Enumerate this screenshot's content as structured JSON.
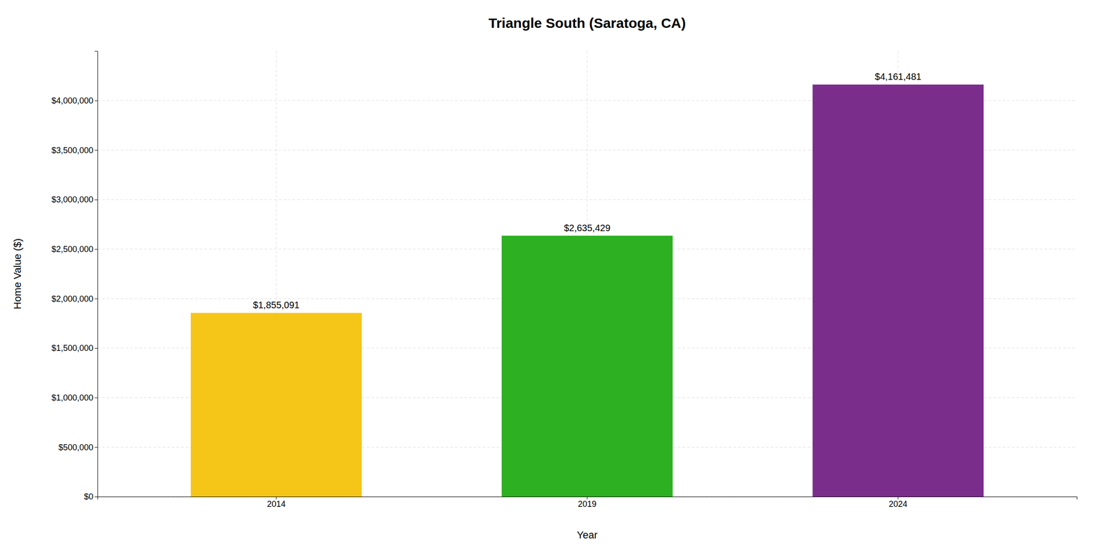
{
  "chart_data": {
    "type": "bar",
    "title": "Triangle South (Saratoga, CA)",
    "xlabel": "Year",
    "ylabel": "Home Value ($)",
    "categories": [
      "2014",
      "2019",
      "2024"
    ],
    "values": [
      1855091,
      2635429,
      4161481
    ],
    "value_labels": [
      "$1,855,091",
      "$2,635,429",
      "$4,161,481"
    ],
    "colors": [
      "#F5C518",
      "#2DB022",
      "#7B2D8B"
    ],
    "data_labels": true,
    "ylim": [
      0,
      4500000
    ],
    "yticks": [
      {
        "value": 0,
        "label": "$0"
      },
      {
        "value": 500000,
        "label": "$500,000"
      },
      {
        "value": 1000000,
        "label": "$1,000,000"
      },
      {
        "value": 1500000,
        "label": "$1,500,000"
      },
      {
        "value": 2000000,
        "label": "$2,000,000"
      },
      {
        "value": 2500000,
        "label": "$2,500,000"
      },
      {
        "value": 3000000,
        "label": "$3,000,000"
      },
      {
        "value": 3500000,
        "label": "$3,500,000"
      },
      {
        "value": 4000000,
        "label": "$4,000,000"
      }
    ],
    "grid": true
  }
}
